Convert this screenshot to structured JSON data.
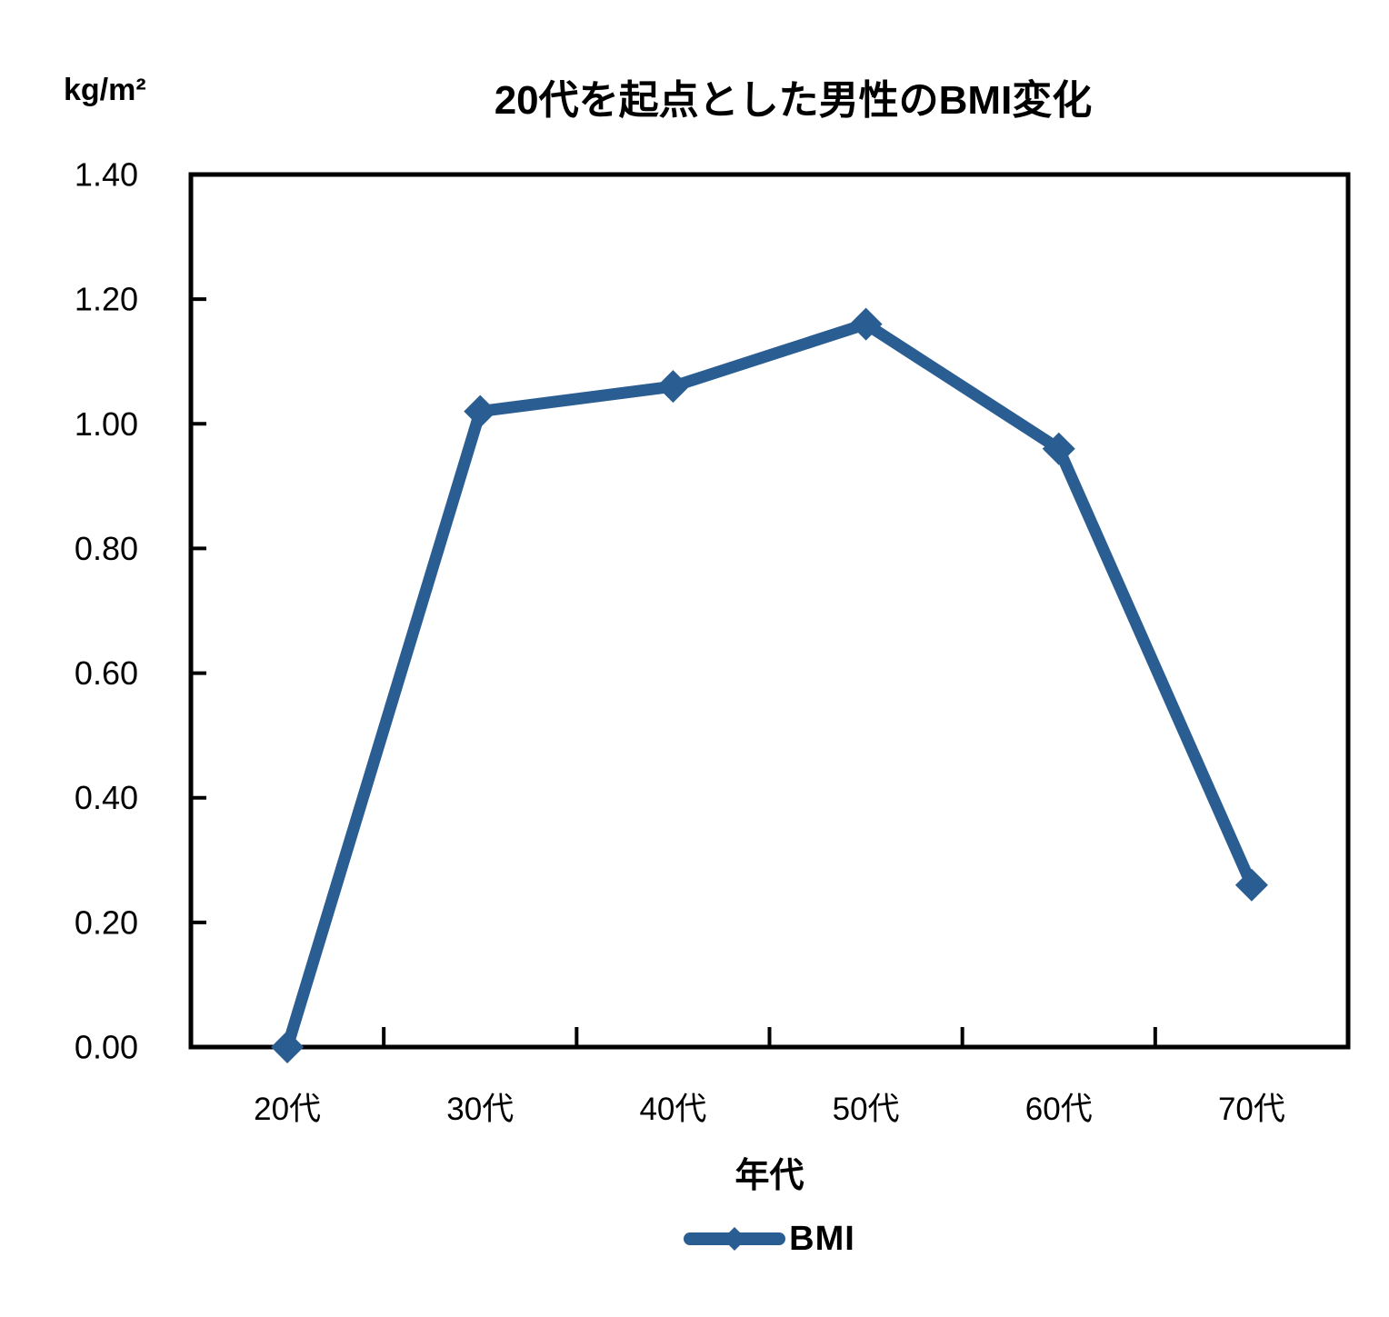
{
  "chart_data": {
    "type": "line",
    "title": "20代を起点とした男性のBMI変化",
    "y_unit_label": "kg/m²",
    "xlabel": "年代",
    "categories": [
      "20代",
      "30代",
      "40代",
      "50代",
      "60代",
      "70代"
    ],
    "series": [
      {
        "name": "BMI",
        "values": [
          0.0,
          1.02,
          1.06,
          1.16,
          0.96,
          0.26
        ]
      }
    ],
    "ylim": [
      0.0,
      1.4
    ],
    "ytick_labels": [
      "0.00",
      "0.20",
      "0.40",
      "0.60",
      "0.80",
      "1.00",
      "1.20",
      "1.40"
    ],
    "grid": false,
    "legend_position": "bottom",
    "marker": "diamond",
    "line_color": "#2A5E93",
    "axis_color": "#000000",
    "text_color": "#000000",
    "background_color": "#ffffff"
  }
}
